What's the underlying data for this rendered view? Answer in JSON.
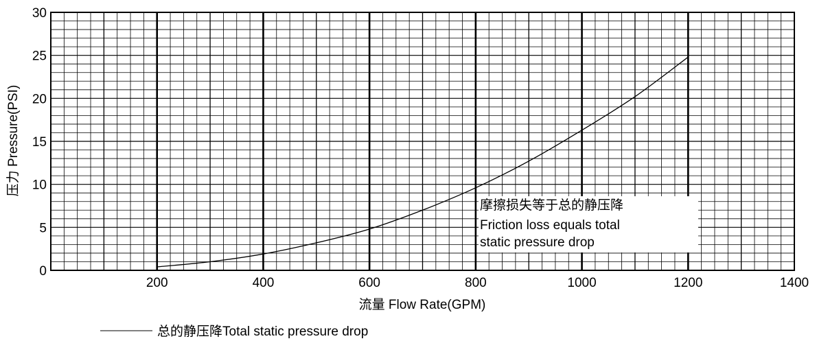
{
  "chart_data": {
    "type": "line",
    "xlim": [
      0,
      1400
    ],
    "ylim": [
      0,
      30
    ],
    "x_ticks": [
      "200",
      "400",
      "600",
      "800",
      "1000",
      "1200",
      "1400"
    ],
    "y_ticks": [
      "0",
      "5",
      "10",
      "15",
      "20",
      "25",
      "30"
    ],
    "xlabel": "流量 Flow Rate(GPM)",
    "ylabel": "压力 Pressure(PSI)",
    "grid": true,
    "legend_position": "bottom-left",
    "series": [
      {
        "name": "总的静压降Total static pressure drop",
        "x": [
          200,
          300,
          400,
          500,
          600,
          700,
          800,
          900,
          1000,
          1100,
          1200
        ],
        "y": [
          0.4,
          1.0,
          1.9,
          3.2,
          4.8,
          7.0,
          9.6,
          12.7,
          16.3,
          20.2,
          24.8
        ]
      }
    ],
    "annotation": {
      "line1": "摩擦损失等于总的静压降",
      "line2": "Friction loss equals total",
      "line3": "static pressure drop"
    }
  }
}
